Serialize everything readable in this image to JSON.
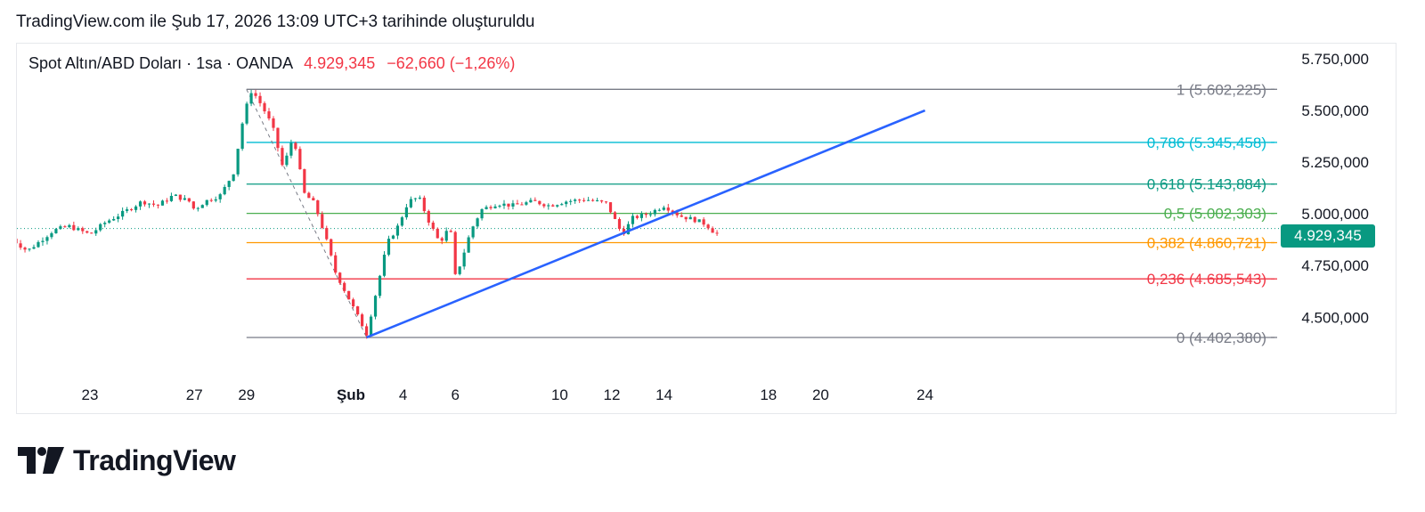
{
  "header": {
    "caption": "TradingView.com ile Şub 17, 2026 13:09 UTC+3 tarihinde oluşturuldu"
  },
  "legend": {
    "symbol": "Spot Altın/ABD Doları · 1sa · OANDA",
    "price": "4.929,345",
    "change": "−62,660 (−1,26%)"
  },
  "brand": {
    "name": "TradingView",
    "color": "#131722"
  },
  "chart_data": {
    "type": "candlestick",
    "title": "Spot Altın/ABD Doları · 1sa · OANDA",
    "last_price": 4929.345,
    "last_price_label": "4.929,345",
    "ylim": [
      4230000,
      5780000
    ],
    "y_ticks": [
      {
        "value": 5750000,
        "label": "5.750,000"
      },
      {
        "value": 5500000,
        "label": "5.500,000"
      },
      {
        "value": 5250000,
        "label": "5.250,000"
      },
      {
        "value": 5000000,
        "label": "5.000,000"
      },
      {
        "value": 4750000,
        "label": "4.750,000"
      },
      {
        "value": 4500000,
        "label": "4.500,000"
      }
    ],
    "x_ticks": [
      {
        "day": 23,
        "label": "23"
      },
      {
        "day": 27,
        "label": "27"
      },
      {
        "day": 29,
        "label": "29"
      },
      {
        "day": 33,
        "label": "Şub"
      },
      {
        "day": 35,
        "label": "4"
      },
      {
        "day": 37,
        "label": "6"
      },
      {
        "day": 41,
        "label": "10"
      },
      {
        "day": 43,
        "label": "12"
      },
      {
        "day": 45,
        "label": "14"
      },
      {
        "day": 49,
        "label": "18"
      },
      {
        "day": 51,
        "label": "20"
      },
      {
        "day": 55,
        "label": "24"
      }
    ],
    "fib_levels": [
      {
        "ratio": "1",
        "value": 5602225,
        "label": "1 (5.602,225)",
        "color": "#787b86"
      },
      {
        "ratio": "0,786",
        "value": 5345458,
        "label": "0,786 (5.345,458)",
        "color": "#00bcd4"
      },
      {
        "ratio": "0,618",
        "value": 5143884,
        "label": "0,618 (5.143,884)",
        "color": "#089981"
      },
      {
        "ratio": "0,5",
        "value": 5002303,
        "label": "0,5 (5.002,303)",
        "color": "#4caf50"
      },
      {
        "ratio": "0,382",
        "value": 4860721,
        "label": "0,382 (4.860,721)",
        "color": "#ff9800"
      },
      {
        "ratio": "0,236",
        "value": 4685543,
        "label": "0,236 (4.685,543)",
        "color": "#f23645"
      },
      {
        "ratio": "0",
        "value": 4402380,
        "label": "0 (4.402,380)",
        "color": "#787b86"
      }
    ],
    "fib_start_day": 29,
    "trendline": {
      "color": "#2962ff",
      "points": [
        [
          33.6,
          4402380
        ],
        [
          55.0,
          5500000
        ]
      ]
    },
    "swing_line": {
      "points": [
        [
          29.0,
          5602225
        ],
        [
          33.6,
          4402380
        ]
      ]
    },
    "up_color": "#089981",
    "down_color": "#f23645",
    "series_path": [
      [
        20.0,
        4880000
      ],
      [
        20.6,
        4820000
      ],
      [
        21.0,
        4860000
      ],
      [
        21.6,
        4920000
      ],
      [
        22.2,
        4940000
      ],
      [
        23.0,
        4900000
      ],
      [
        23.6,
        4960000
      ],
      [
        24.2,
        5000000
      ],
      [
        25.0,
        5060000
      ],
      [
        25.6,
        5040000
      ],
      [
        26.2,
        5090000
      ],
      [
        26.8,
        5060000
      ],
      [
        27.0,
        5020000
      ],
      [
        27.4,
        5060000
      ],
      [
        28.0,
        5090000
      ],
      [
        28.5,
        5200000
      ],
      [
        28.9,
        5480000
      ],
      [
        29.2,
        5600000
      ],
      [
        29.6,
        5520000
      ],
      [
        30.0,
        5420000
      ],
      [
        30.4,
        5220000
      ],
      [
        30.8,
        5380000
      ],
      [
        31.2,
        5100000
      ],
      [
        31.6,
        5050000
      ],
      [
        32.0,
        4900000
      ],
      [
        32.4,
        4720000
      ],
      [
        32.8,
        4620000
      ],
      [
        33.2,
        4520000
      ],
      [
        33.6,
        4420000
      ],
      [
        34.0,
        4640000
      ],
      [
        34.4,
        4860000
      ],
      [
        34.8,
        4940000
      ],
      [
        35.2,
        5060000
      ],
      [
        35.6,
        5080000
      ],
      [
        36.0,
        4960000
      ],
      [
        36.4,
        4860000
      ],
      [
        36.8,
        4940000
      ],
      [
        37.0,
        4700000
      ],
      [
        37.2,
        4760000
      ],
      [
        37.6,
        4920000
      ],
      [
        38.0,
        5020000
      ],
      [
        38.6,
        5050000
      ],
      [
        39.2,
        5040000
      ],
      [
        40.0,
        5060000
      ],
      [
        40.6,
        5040000
      ],
      [
        41.2,
        5060000
      ],
      [
        42.0,
        5070000
      ],
      [
        42.8,
        5050000
      ],
      [
        43.4,
        4900000
      ],
      [
        43.8,
        4980000
      ],
      [
        44.4,
        5000000
      ],
      [
        45.0,
        5040000
      ],
      [
        45.6,
        4990000
      ],
      [
        46.2,
        4970000
      ],
      [
        46.6,
        4950000
      ],
      [
        47.0,
        4900000
      ],
      [
        47.2,
        4929345
      ]
    ]
  }
}
